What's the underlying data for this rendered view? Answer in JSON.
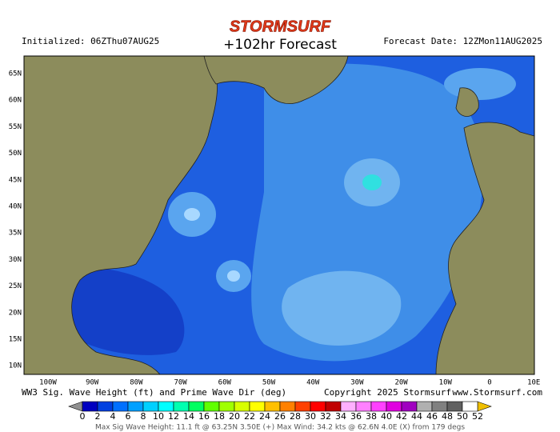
{
  "header": {
    "logo": "STORMSURF",
    "title": "+102hr Forecast",
    "initialized": "Initialized: 06ZThu07AUG25",
    "forecast_date": "Forecast Date: 12ZMon11AUG2025"
  },
  "map": {
    "lat_labels": [
      "65N",
      "60N",
      "55N",
      "50N",
      "45N",
      "40N",
      "35N",
      "30N",
      "25N",
      "20N",
      "15N",
      "10N"
    ],
    "lon_labels": [
      "100W",
      "90W",
      "80W",
      "70W",
      "60W",
      "50W",
      "40W",
      "30W",
      "20W",
      "10W",
      "0",
      "10E"
    ]
  },
  "caption": {
    "description": "WW3 Sig. Wave Height (ft) and Prime Wave Dir (deg)",
    "copyright": "Copyright 2025 Stormsurf",
    "website": "www.Stormsurf.com"
  },
  "colorbar": {
    "labels": [
      0,
      2,
      4,
      6,
      8,
      10,
      12,
      14,
      16,
      18,
      20,
      22,
      24,
      26,
      28,
      30,
      32,
      34,
      36,
      38,
      40,
      42,
      44,
      46,
      48,
      50,
      52
    ],
    "colors": [
      "#0000c0",
      "#0040e0",
      "#0070ff",
      "#00a0ff",
      "#00d0ff",
      "#00ffff",
      "#00ffb0",
      "#00ff60",
      "#60ff00",
      "#a0ff00",
      "#d8ff00",
      "#ffff00",
      "#ffc000",
      "#ff8000",
      "#ff4000",
      "#ff0000",
      "#c00000",
      "#ffb0ff",
      "#ff80ff",
      "#ff40ff",
      "#e000e0",
      "#a000c0",
      "#b0b0b0",
      "#808080",
      "#606060",
      "#ffffff"
    ]
  },
  "footer": "Max Sig Wave Height: 11.1 ft @ 63.25N 3.50E (+)   Max Wind: 34.2 kts @ 62.6N 4.0E (X) from 179 degs"
}
